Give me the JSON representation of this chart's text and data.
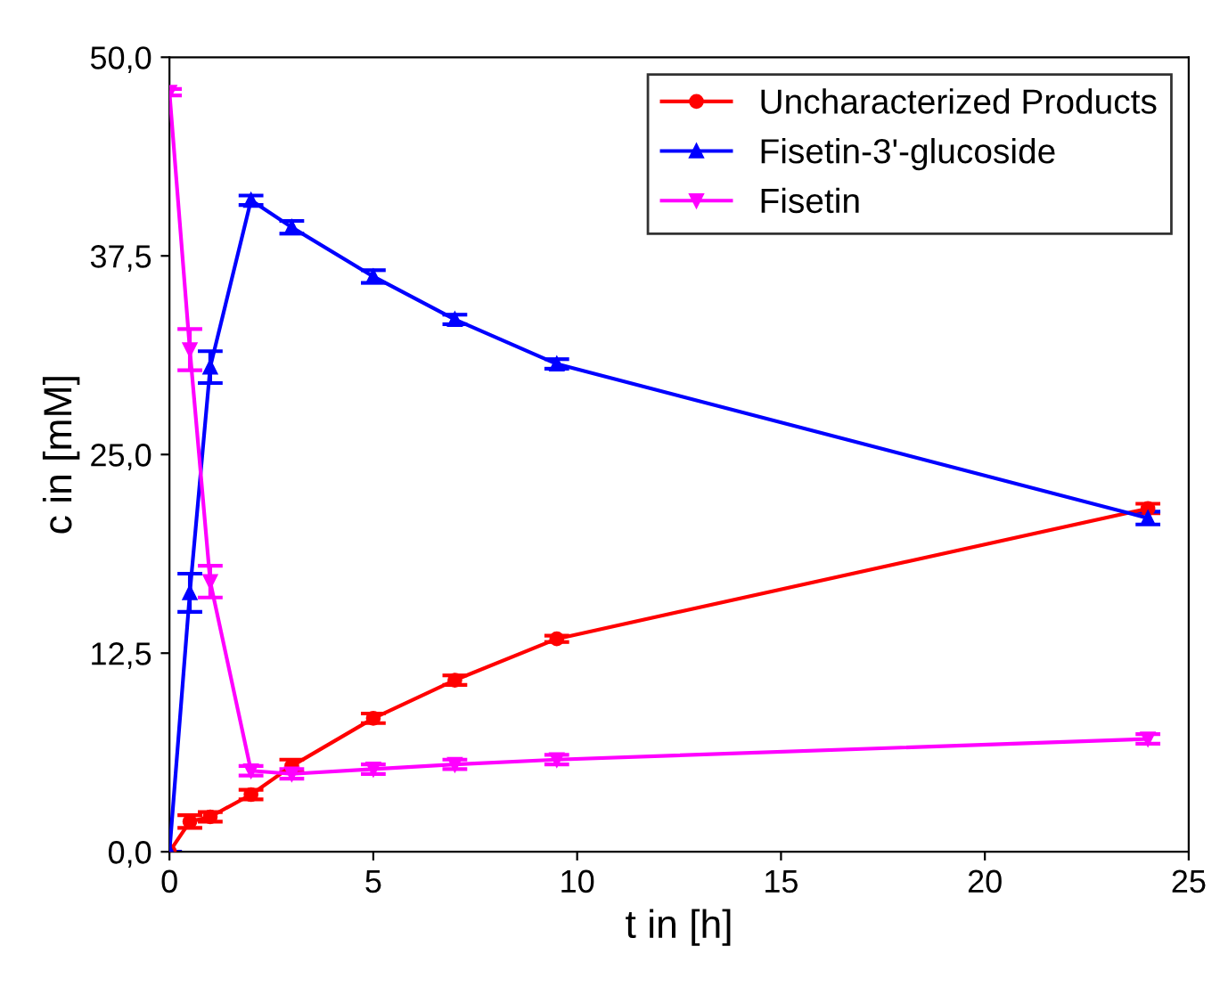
{
  "chart_data": {
    "type": "line",
    "xlabel": "t in [h]",
    "ylabel": "c in [mM]",
    "x": [
      0,
      0.5,
      1,
      2,
      3,
      5,
      7,
      9.5,
      24
    ],
    "xlim": [
      0,
      25
    ],
    "xticks": [
      0,
      5,
      10,
      15,
      20,
      25
    ],
    "ylim": [
      0,
      50
    ],
    "yticks": [
      {
        "value": 0,
        "label": "0,0"
      },
      {
        "value": 12.5,
        "label": "12,5"
      },
      {
        "value": 25,
        "label": "25,0"
      },
      {
        "value": 37.5,
        "label": "37,5"
      },
      {
        "value": 50,
        "label": "50,0"
      }
    ],
    "grid": false,
    "legend": "top right",
    "series": [
      {
        "name": "Uncharacterized Products",
        "color": "#ff0000",
        "marker": "circle",
        "values": [
          0,
          1.9,
          2.2,
          3.6,
          5.4,
          8.4,
          10.8,
          13.4,
          21.6
        ],
        "errors": [
          null,
          0.4,
          0.3,
          0.3,
          0.4,
          0.3,
          0.3,
          0.2,
          0.3
        ]
      },
      {
        "name": "Fisetin-3'-glucoside",
        "color": "#0000ff",
        "marker": "triangle",
        "values": [
          0,
          16.3,
          30.5,
          41.0,
          39.3,
          36.2,
          33.5,
          30.7,
          21.0
        ],
        "errors": [
          null,
          1.2,
          1.0,
          0.3,
          0.4,
          0.4,
          0.3,
          0.3,
          0.4
        ]
      },
      {
        "name": "Fisetin",
        "color": "#ff00ff",
        "marker": "triangle_down",
        "values": [
          47.8,
          31.6,
          17.0,
          5.1,
          4.9,
          5.2,
          5.5,
          5.8,
          7.1
        ],
        "errors": [
          0.2,
          1.3,
          1.0,
          0.3,
          0.3,
          0.3,
          0.3,
          0.3,
          0.3
        ]
      }
    ]
  }
}
